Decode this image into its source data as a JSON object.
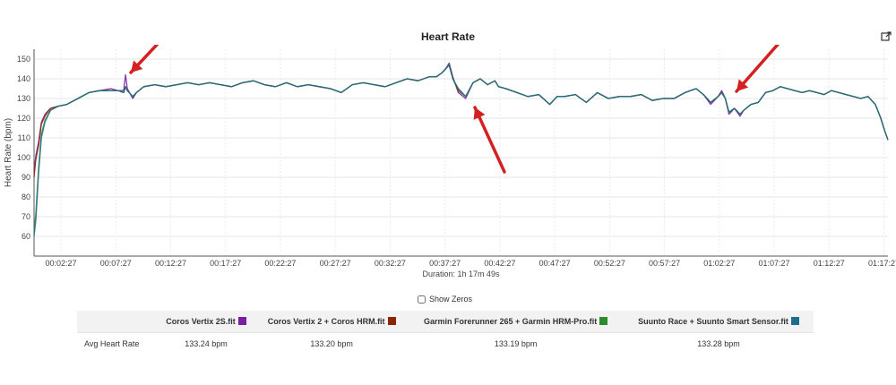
{
  "chart_data": {
    "type": "line",
    "title": "Heart Rate",
    "xlabel": "Duration: 1h 17m 49s",
    "ylabel": "Heart Rate (bpm)",
    "xlim_seconds": [
      0,
      4669
    ],
    "ylim": [
      50,
      155
    ],
    "y_ticks": [
      60,
      70,
      80,
      90,
      100,
      110,
      120,
      130,
      140,
      150
    ],
    "x_ticks": [
      {
        "t": 147,
        "label": "00:02:27"
      },
      {
        "t": 447,
        "label": "00:07:27"
      },
      {
        "t": 747,
        "label": "00:12:27"
      },
      {
        "t": 1047,
        "label": "00:17:27"
      },
      {
        "t": 1347,
        "label": "00:22:27"
      },
      {
        "t": 1647,
        "label": "00:27:27"
      },
      {
        "t": 1947,
        "label": "00:32:27"
      },
      {
        "t": 2247,
        "label": "00:37:27"
      },
      {
        "t": 2547,
        "label": "00:42:27"
      },
      {
        "t": 2847,
        "label": "00:47:27"
      },
      {
        "t": 3147,
        "label": "00:52:27"
      },
      {
        "t": 3447,
        "label": "00:57:27"
      },
      {
        "t": 3747,
        "label": "01:02:27"
      },
      {
        "t": 4047,
        "label": "01:07:27"
      },
      {
        "t": 4347,
        "label": "01:12:27"
      },
      {
        "t": 4647,
        "label": "01:17:27"
      }
    ],
    "grid": true,
    "x": [
      0,
      10,
      25,
      40,
      60,
      90,
      130,
      180,
      240,
      300,
      360,
      420,
      460,
      490,
      500,
      510,
      540,
      560,
      600,
      660,
      720,
      780,
      840,
      900,
      960,
      1020,
      1080,
      1140,
      1200,
      1260,
      1320,
      1380,
      1440,
      1500,
      1560,
      1620,
      1680,
      1740,
      1800,
      1860,
      1920,
      1980,
      2040,
      2100,
      2160,
      2200,
      2230,
      2250,
      2270,
      2290,
      2320,
      2360,
      2400,
      2440,
      2480,
      2520,
      2540,
      2580,
      2640,
      2700,
      2760,
      2820,
      2860,
      2900,
      2960,
      3020,
      3080,
      3140,
      3200,
      3260,
      3320,
      3380,
      3440,
      3500,
      3560,
      3620,
      3660,
      3700,
      3740,
      3760,
      3780,
      3800,
      3830,
      3860,
      3880,
      3920,
      3960,
      4000,
      4040,
      4080,
      4120,
      4160,
      4200,
      4240,
      4280,
      4320,
      4360,
      4400,
      4440,
      4480,
      4520,
      4560,
      4600,
      4630,
      4650,
      4669
    ],
    "series": [
      {
        "name": "Coros Vertix 2S.fit",
        "color": "#7b1fa2",
        "values": [
          93,
          101,
          108,
          118,
          122,
          125,
          126,
          127,
          130,
          133,
          134,
          135,
          134,
          134,
          142,
          135,
          130,
          133,
          136,
          137,
          136,
          137,
          138,
          137,
          138,
          137,
          136,
          138,
          139,
          137,
          136,
          138,
          136,
          137,
          136,
          135,
          133,
          137,
          138,
          137,
          136,
          138,
          140,
          139,
          141,
          141,
          143,
          145,
          148,
          141,
          133,
          130,
          138,
          140,
          137,
          139,
          136,
          135,
          133,
          131,
          132,
          127,
          131,
          131,
          132,
          128,
          133,
          130,
          131,
          131,
          132,
          129,
          130,
          130,
          133,
          135,
          132,
          127,
          131,
          134,
          130,
          122,
          125,
          121,
          124,
          127,
          128,
          133,
          134,
          136,
          135,
          134,
          133,
          134,
          133,
          132,
          134,
          133,
          132,
          131,
          130,
          131,
          127,
          120,
          114,
          109
        ]
      },
      {
        "name": "Coros Vertix 2 + Coros HRM.fit",
        "color": "#8b2500",
        "values": [
          90,
          99,
          106,
          117,
          121,
          125,
          126,
          127,
          130,
          133,
          134,
          134,
          134,
          133,
          136,
          134,
          131,
          133,
          136,
          137,
          136,
          137,
          138,
          137,
          138,
          137,
          136,
          138,
          139,
          137,
          136,
          138,
          136,
          137,
          136,
          135,
          133,
          137,
          138,
          137,
          136,
          138,
          140,
          139,
          141,
          141,
          143,
          145,
          147,
          140,
          134,
          131,
          138,
          140,
          137,
          139,
          136,
          135,
          133,
          131,
          132,
          127,
          131,
          131,
          132,
          128,
          133,
          130,
          131,
          131,
          132,
          129,
          130,
          130,
          133,
          135,
          132,
          128,
          131,
          133,
          130,
          123,
          125,
          122,
          124,
          127,
          128,
          133,
          134,
          136,
          135,
          134,
          133,
          134,
          133,
          132,
          134,
          133,
          132,
          131,
          130,
          131,
          127,
          120,
          114,
          109
        ]
      },
      {
        "name": "Garmin Forerunner 265 + Garmin HRM-Pro.fit",
        "color": "#2e8b2e",
        "values": [
          62,
          72,
          95,
          112,
          119,
          124,
          126,
          127,
          130,
          133,
          134,
          134,
          134,
          133,
          136,
          134,
          131,
          133,
          136,
          137,
          136,
          137,
          138,
          137,
          138,
          137,
          136,
          138,
          139,
          137,
          136,
          138,
          136,
          137,
          136,
          135,
          133,
          137,
          138,
          137,
          136,
          138,
          140,
          139,
          141,
          141,
          143,
          145,
          147,
          140,
          135,
          131,
          138,
          140,
          137,
          139,
          136,
          135,
          133,
          131,
          132,
          127,
          131,
          131,
          132,
          128,
          133,
          130,
          131,
          131,
          132,
          129,
          130,
          130,
          133,
          135,
          132,
          128,
          131,
          133,
          130,
          123,
          125,
          122,
          124,
          127,
          128,
          133,
          134,
          136,
          135,
          134,
          133,
          134,
          133,
          132,
          134,
          133,
          132,
          131,
          130,
          131,
          127,
          120,
          114,
          109
        ]
      },
      {
        "name": "Suunto Race + Suunto Smart Sensor.fit",
        "color": "#1e6b8c",
        "values": [
          60,
          68,
          92,
          110,
          118,
          124,
          126,
          127,
          130,
          133,
          134,
          134,
          134,
          133,
          136,
          134,
          131,
          133,
          136,
          137,
          136,
          137,
          138,
          137,
          138,
          137,
          136,
          138,
          139,
          137,
          136,
          138,
          136,
          137,
          136,
          135,
          133,
          137,
          138,
          137,
          136,
          138,
          140,
          139,
          141,
          141,
          143,
          145,
          147,
          140,
          135,
          131,
          138,
          140,
          137,
          139,
          136,
          135,
          133,
          131,
          132,
          127,
          131,
          131,
          132,
          128,
          133,
          130,
          131,
          131,
          132,
          129,
          130,
          130,
          133,
          135,
          132,
          128,
          131,
          133,
          130,
          123,
          125,
          122,
          124,
          127,
          128,
          133,
          134,
          136,
          135,
          134,
          133,
          134,
          133,
          132,
          134,
          133,
          132,
          131,
          130,
          131,
          127,
          120,
          114,
          109
        ]
      }
    ]
  },
  "controls": {
    "show_zeros_label": "Show Zeros"
  },
  "summary": {
    "row_label": "Avg Heart Rate",
    "columns": [
      {
        "file": "Coros Vertix 2S.fit",
        "color": "#7b1fa2",
        "avg": "133.24 bpm"
      },
      {
        "file": "Coros Vertix 2 + Coros HRM.fit",
        "color": "#8b2500",
        "avg": "133.20 bpm"
      },
      {
        "file": "Garmin Forerunner 265 + Garmin HRM-Pro.fit",
        "color": "#2e8b2e",
        "avg": "133.19 bpm"
      },
      {
        "file": "Suunto Race + Suunto Smart Sensor.fit",
        "color": "#1e6b8c",
        "avg": "133.28 bpm"
      }
    ]
  },
  "annotation_color": "#d42020"
}
